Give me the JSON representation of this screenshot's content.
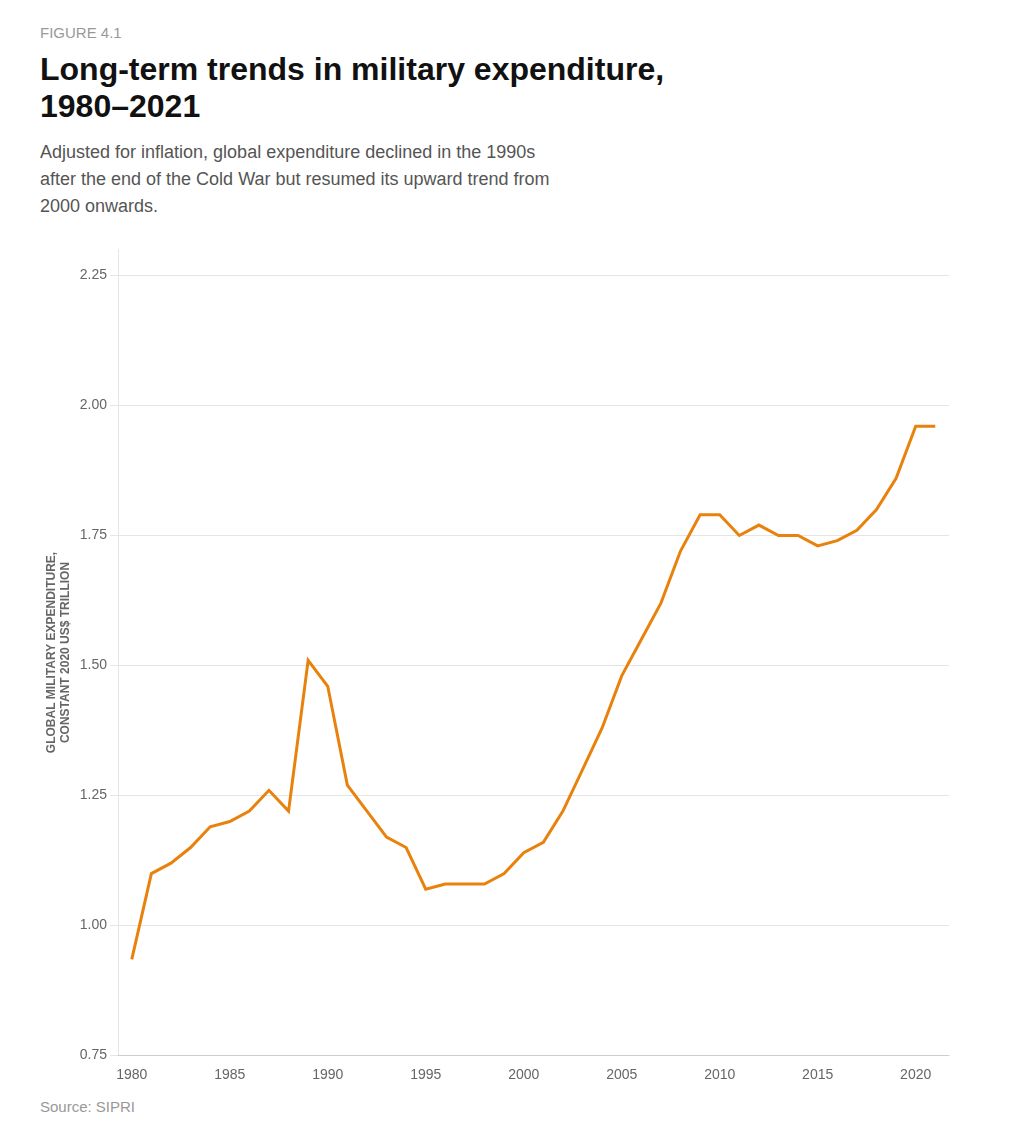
{
  "chart_data": {
    "type": "line",
    "figure_label": "FIGURE 4.1",
    "title": "Long-term trends in military expenditure,\n1980–2021",
    "subtitle": "Adjusted for inflation, global expenditure declined in the 1990s\nafter the end of the Cold War but resumed its upward trend from\n2000 onwards.",
    "source": "Source: SIPRI",
    "y_label": "GLOBAL MILITARY EXPENDITURE,\nCONSTANT 2020 US$ TRILLION",
    "x": [
      1980,
      1981,
      1982,
      1983,
      1984,
      1985,
      1986,
      1987,
      1988,
      1989,
      1990,
      1991,
      1992,
      1993,
      1994,
      1995,
      1996,
      1997,
      1998,
      1999,
      2000,
      2001,
      2002,
      2003,
      2004,
      2005,
      2006,
      2007,
      2008,
      2009,
      2010,
      2011,
      2012,
      2013,
      2014,
      2015,
      2016,
      2017,
      2018,
      2019,
      2020,
      2021
    ],
    "values": [
      0.935,
      1.1,
      1.12,
      1.15,
      1.19,
      1.2,
      1.22,
      1.26,
      1.22,
      1.51,
      1.46,
      1.27,
      1.22,
      1.17,
      1.15,
      1.07,
      1.08,
      1.08,
      1.08,
      1.1,
      1.14,
      1.16,
      1.22,
      1.3,
      1.38,
      1.48,
      1.55,
      1.62,
      1.72,
      1.79,
      1.79,
      1.75,
      1.77,
      1.75,
      1.75,
      1.73,
      1.74,
      1.76,
      1.8,
      1.86,
      1.96,
      1.96
    ],
    "color": "#E8820C",
    "xlim": [
      1979.3,
      2021.7
    ],
    "xticks": [
      1980,
      1985,
      1990,
      1995,
      2000,
      2005,
      2010,
      2015,
      2020
    ],
    "ylim": [
      0.75,
      2.3
    ],
    "yticks": [
      0.75,
      {
        "value": 1.0,
        "label": "1.00"
      },
      1.25,
      {
        "value": 1.5,
        "label": "1.50"
      },
      1.75,
      {
        "value": 2.0,
        "label": "2.00"
      },
      2.25
    ],
    "grid": "y"
  }
}
